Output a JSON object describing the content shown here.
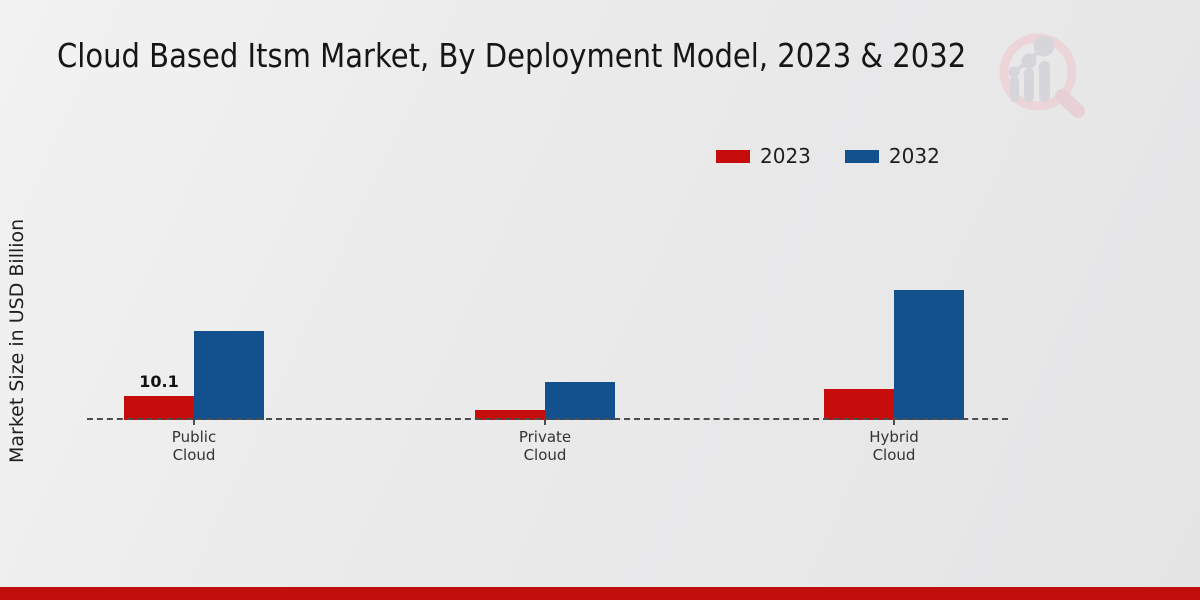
{
  "chart_data": {
    "type": "bar",
    "title": "Cloud Based Itsm Market, By Deployment Model, 2023 & 2032",
    "ylabel": "Market Size in USD Billion",
    "xlabel": "",
    "categories": [
      "Public Cloud",
      "Private Cloud",
      "Hybrid Cloud"
    ],
    "series": [
      {
        "name": "2023",
        "color": "#c70c0c",
        "values": [
          10.1,
          4.2,
          13.0
        ],
        "value_labels": [
          "10.1",
          "",
          ""
        ]
      },
      {
        "name": "2032",
        "color": "#12508e",
        "values": [
          37.5,
          16.0,
          54.7
        ],
        "value_labels": [
          "",
          "",
          ""
        ]
      }
    ],
    "ylim": [
      0,
      60
    ],
    "grid": false,
    "legend_position": "top-right",
    "baseline_style": "dashed"
  },
  "branding": {
    "watermark_icon": "magnifier-bar-chart-logo",
    "bottom_bar_color": "#c20d0d",
    "watermark_ring_color": "#ecd2d6",
    "watermark_glyph_color": "#d3d3d8"
  }
}
